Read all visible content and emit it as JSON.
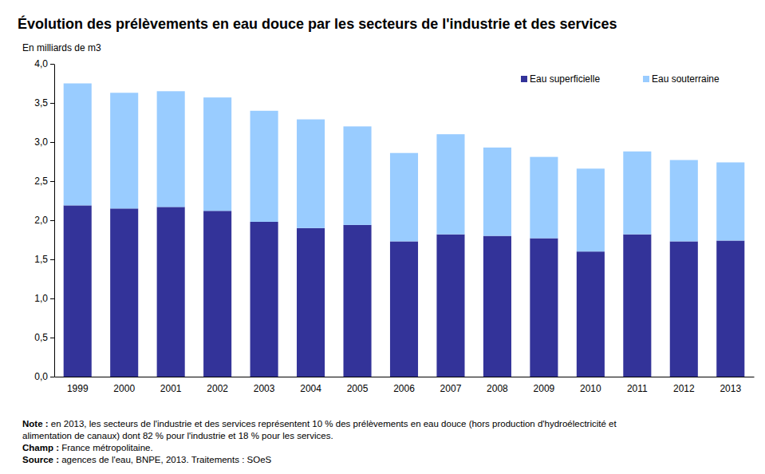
{
  "chart_data": {
    "type": "bar",
    "stacked": true,
    "title": "Évolution des prélèvements en eau douce par les secteurs de l'industrie et des services",
    "y_label": "En milliards de m3",
    "categories": [
      "1999",
      "2000",
      "2001",
      "2002",
      "2003",
      "2004",
      "2005",
      "2006",
      "2007",
      "2008",
      "2009",
      "2010",
      "2011",
      "2012",
      "2013"
    ],
    "series": [
      {
        "name": "Eau superficielle",
        "color": "#333399",
        "values": [
          2.19,
          2.15,
          2.17,
          2.12,
          1.98,
          1.9,
          1.94,
          1.73,
          1.82,
          1.8,
          1.77,
          1.6,
          1.82,
          1.73,
          1.74
        ]
      },
      {
        "name": "Eau souterraine",
        "color": "#99ccff",
        "values": [
          1.56,
          1.48,
          1.48,
          1.45,
          1.42,
          1.39,
          1.26,
          1.13,
          1.28,
          1.13,
          1.04,
          1.06,
          1.06,
          1.04,
          1.0
        ]
      }
    ],
    "ylim": [
      0,
      4
    ],
    "yticks": [
      {
        "value": 0,
        "label": "0,0"
      },
      {
        "value": 0.5,
        "label": "0,5"
      },
      {
        "value": 1,
        "label": "1,0"
      },
      {
        "value": 1.5,
        "label": "1,5"
      },
      {
        "value": 2,
        "label": "2,0"
      },
      {
        "value": 2.5,
        "label": "2,5"
      },
      {
        "value": 3,
        "label": "3,0"
      },
      {
        "value": 3.5,
        "label": "3,5"
      },
      {
        "value": 4,
        "label": "4,0"
      }
    ],
    "grid": false,
    "legend": "top-right",
    "notes": [
      {
        "label": "Note :",
        "lines": [
          "en 2013, les secteurs de l'industrie et des services représentent 10 % des prélèvements en eau douce (hors production d'hydroélectricité et",
          "alimentation de canaux) dont 82 % pour l'industrie et 18 % pour les services."
        ]
      },
      {
        "label": "Champ :",
        "lines": [
          "France métropolitaine."
        ]
      },
      {
        "label": "Source :",
        "lines": [
          "agences de l'eau, BNPE, 2013. Traitements  : SOeS"
        ]
      }
    ]
  }
}
